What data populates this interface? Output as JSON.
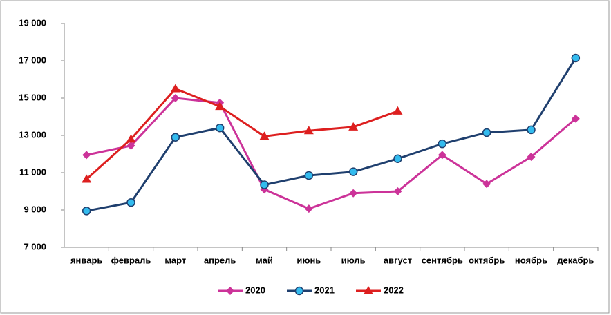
{
  "chart_data": {
    "type": "line",
    "categories": [
      "январь",
      "февраль",
      "март",
      "апрель",
      "май",
      "июнь",
      "июль",
      "август",
      "сентябрь",
      "октябрь",
      "ноябрь",
      "декабрь"
    ],
    "series": [
      {
        "name": "2020",
        "color": "#cc3399",
        "marker": "diamond",
        "values": [
          11950,
          12450,
          15000,
          14750,
          10100,
          9070,
          9900,
          10000,
          11950,
          10400,
          11850,
          13900
        ]
      },
      {
        "name": "2021",
        "color": "#1f3f6e",
        "marker": "circle",
        "values": [
          8950,
          9400,
          12900,
          13400,
          10350,
          10850,
          11050,
          11750,
          12550,
          13150,
          13300,
          17150
        ]
      },
      {
        "name": "2022",
        "color": "#dd1f1f",
        "marker": "triangle",
        "values": [
          10650,
          12800,
          15500,
          14550,
          12950,
          13250,
          13450,
          14300,
          null,
          null,
          null,
          null
        ]
      }
    ],
    "ylim": [
      7000,
      19000
    ],
    "yticks": [
      {
        "value": 7000,
        "label": "7 000"
      },
      {
        "value": 9000,
        "label": "9 000"
      },
      {
        "value": 11000,
        "label": "11 000"
      },
      {
        "value": 13000,
        "label": "13 000"
      },
      {
        "value": 15000,
        "label": "15 000"
      },
      {
        "value": 17000,
        "label": "17 000"
      },
      {
        "value": 19000,
        "label": "19 000"
      }
    ],
    "grid": false,
    "legend": "bottom"
  }
}
